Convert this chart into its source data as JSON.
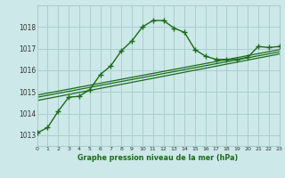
{
  "main_x": [
    0,
    1,
    2,
    3,
    4,
    5,
    6,
    7,
    8,
    9,
    10,
    11,
    12,
    13,
    14,
    15,
    16,
    17,
    18,
    19,
    20,
    21,
    22,
    23
  ],
  "main_y": [
    1013.1,
    1013.35,
    1014.1,
    1014.75,
    1014.8,
    1015.1,
    1015.8,
    1016.2,
    1016.9,
    1017.35,
    1018.0,
    1018.3,
    1018.3,
    1017.95,
    1017.75,
    1016.95,
    1016.65,
    1016.5,
    1016.5,
    1016.5,
    1016.6,
    1017.1,
    1017.05,
    1017.1
  ],
  "band_lines": [
    {
      "x": [
        0,
        23
      ],
      "y": [
        1014.6,
        1016.75
      ]
    },
    {
      "x": [
        0,
        23
      ],
      "y": [
        1014.75,
        1016.85
      ]
    },
    {
      "x": [
        0,
        23
      ],
      "y": [
        1014.85,
        1016.95
      ]
    }
  ],
  "line_color": "#1a6b1a",
  "bg_color": "#cce8e8",
  "grid_color": "#aacece",
  "xlabel": "Graphe pression niveau de la mer (hPa)",
  "ylim": [
    1012.5,
    1019.0
  ],
  "xlim": [
    0,
    23
  ],
  "yticks": [
    1013,
    1014,
    1015,
    1016,
    1017,
    1018
  ],
  "xticks": [
    0,
    1,
    2,
    3,
    4,
    5,
    6,
    7,
    8,
    9,
    10,
    11,
    12,
    13,
    14,
    15,
    16,
    17,
    18,
    19,
    20,
    21,
    22,
    23
  ]
}
